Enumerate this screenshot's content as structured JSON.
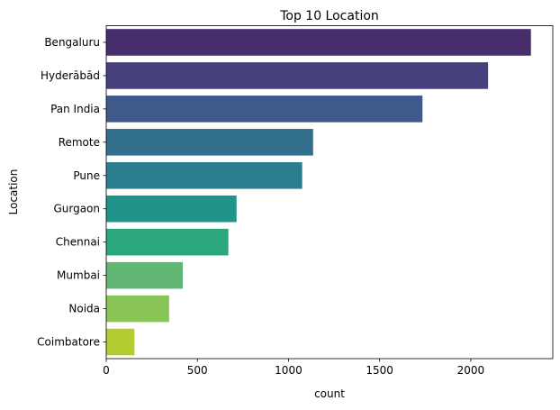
{
  "chart_data": {
    "type": "bar",
    "orientation": "horizontal",
    "title": "Top 10 Location",
    "xlabel": "count",
    "ylabel": "Location",
    "categories": [
      "Bengaluru",
      "Hyderābād",
      "Pan India",
      "Remote",
      "Pune",
      "Gurgaon",
      "Chennai",
      "Mumbai",
      "Noida",
      "Coimbatore"
    ],
    "values": [
      2330,
      2095,
      1735,
      1135,
      1075,
      715,
      670,
      420,
      345,
      155
    ],
    "xlim": [
      0,
      2450
    ],
    "xticks": [
      0,
      500,
      1000,
      1500,
      2000
    ],
    "grid": false,
    "legend": "none",
    "colors": [
      "#472d6c",
      "#47407f",
      "#3f5a8a",
      "#326f8d",
      "#2a7e8d",
      "#21948a",
      "#2aa77c",
      "#60b672",
      "#88c556",
      "#b4cc32"
    ]
  }
}
